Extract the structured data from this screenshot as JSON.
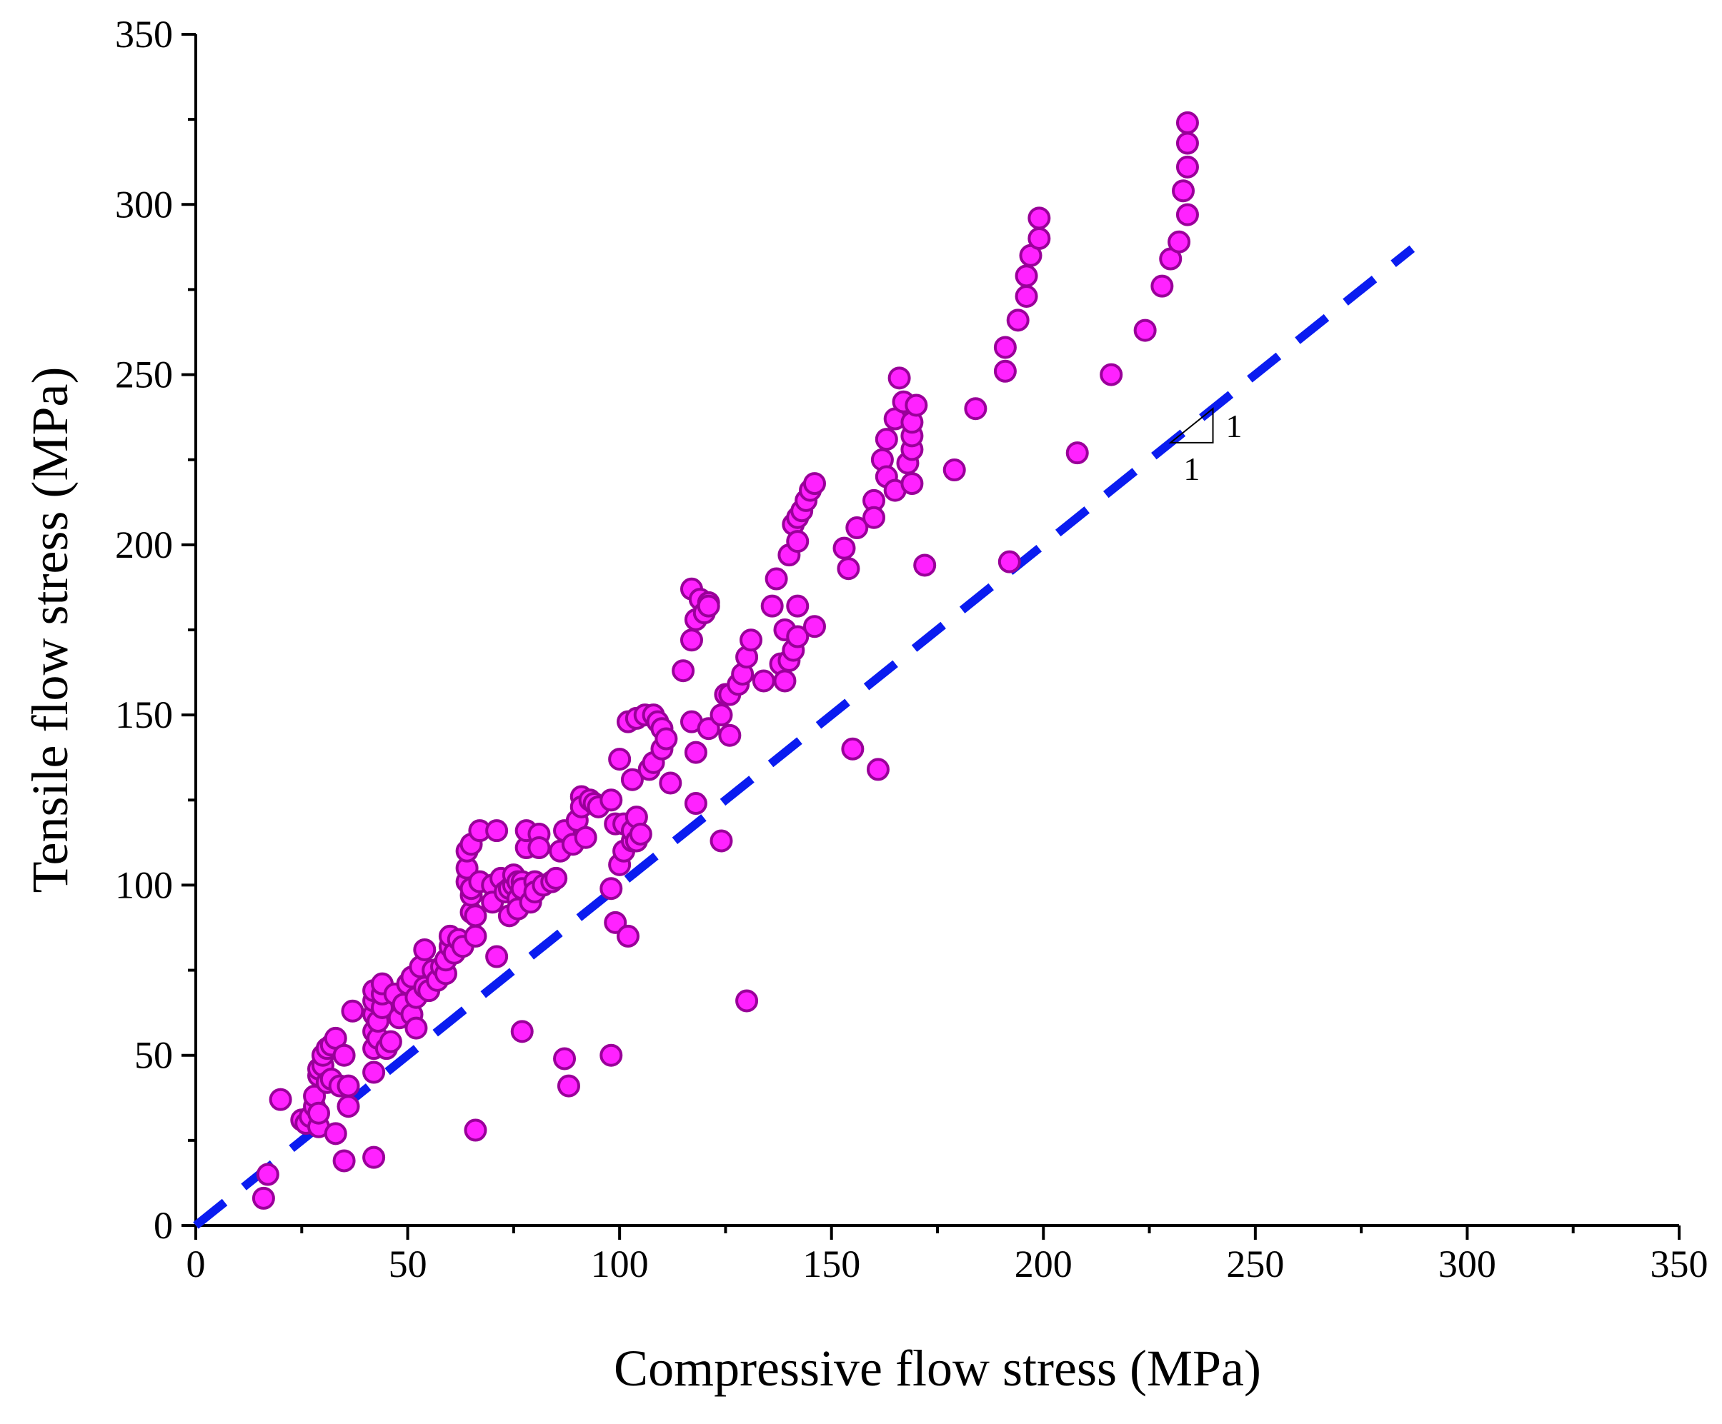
{
  "chart_data": {
    "type": "scatter",
    "title": "",
    "xlabel": "Compressive flow stress (MPa)",
    "ylabel": "Tensile flow stress (MPa)",
    "xlim": [
      0,
      350
    ],
    "ylim": [
      0,
      350
    ],
    "x_ticks": [
      "0",
      "50",
      "100",
      "150",
      "200",
      "250",
      "300",
      "350"
    ],
    "y_ticks": [
      "0",
      "50",
      "100",
      "150",
      "200",
      "250",
      "300",
      "350"
    ],
    "grid": false,
    "legend": "none",
    "colors": {
      "marker_fill": "#ff22ff",
      "marker_edge": "#990099",
      "reference_line": "#0a1cf0"
    },
    "reference_line": {
      "style": "dashed",
      "from": [
        0,
        0
      ],
      "to": [
        287,
        287
      ],
      "slope_labels": [
        "1",
        "1"
      ]
    },
    "series": [
      {
        "points": [
          [
            16,
            8
          ],
          [
            17,
            15
          ],
          [
            20,
            37
          ],
          [
            25,
            31
          ],
          [
            26,
            30
          ],
          [
            27,
            32
          ],
          [
            28,
            35
          ],
          [
            28,
            38
          ],
          [
            29,
            29
          ],
          [
            29,
            33
          ],
          [
            29,
            44
          ],
          [
            29,
            46
          ],
          [
            30,
            47
          ],
          [
            30,
            50
          ],
          [
            31,
            52
          ],
          [
            32,
            53
          ],
          [
            33,
            55
          ],
          [
            31,
            42
          ],
          [
            32,
            43
          ],
          [
            33,
            27
          ],
          [
            34,
            41
          ],
          [
            35,
            50
          ],
          [
            35,
            19
          ],
          [
            36,
            35
          ],
          [
            36,
            41
          ],
          [
            37,
            63
          ],
          [
            42,
            20
          ],
          [
            42,
            45
          ],
          [
            42,
            52
          ],
          [
            42,
            57
          ],
          [
            42,
            62
          ],
          [
            42,
            66
          ],
          [
            42,
            69
          ],
          [
            43,
            55
          ],
          [
            43,
            60
          ],
          [
            44,
            64
          ],
          [
            44,
            68
          ],
          [
            44,
            71
          ],
          [
            45,
            52
          ],
          [
            46,
            54
          ],
          [
            47,
            68
          ],
          [
            48,
            61
          ],
          [
            49,
            65
          ],
          [
            50,
            71
          ],
          [
            51,
            73
          ],
          [
            51,
            62
          ],
          [
            52,
            67
          ],
          [
            52,
            58
          ],
          [
            53,
            76
          ],
          [
            54,
            70
          ],
          [
            54,
            81
          ],
          [
            55,
            69
          ],
          [
            56,
            75
          ],
          [
            57,
            72
          ],
          [
            58,
            76
          ],
          [
            59,
            74
          ],
          [
            59,
            78
          ],
          [
            60,
            82
          ],
          [
            60,
            85
          ],
          [
            61,
            80
          ],
          [
            62,
            84
          ],
          [
            63,
            82
          ],
          [
            64,
            101
          ],
          [
            64,
            105
          ],
          [
            64,
            110
          ],
          [
            65,
            92
          ],
          [
            65,
            97
          ],
          [
            65,
            99
          ],
          [
            65,
            112
          ],
          [
            66,
            91
          ],
          [
            66,
            28
          ],
          [
            66,
            85
          ],
          [
            67,
            101
          ],
          [
            67,
            116
          ],
          [
            70,
            100
          ],
          [
            70,
            95
          ],
          [
            71,
            79
          ],
          [
            71,
            116
          ],
          [
            72,
            102
          ],
          [
            73,
            98
          ],
          [
            74,
            99
          ],
          [
            74,
            91
          ],
          [
            75,
            100
          ],
          [
            75,
            103
          ],
          [
            76,
            96
          ],
          [
            76,
            101
          ],
          [
            76,
            93
          ],
          [
            77,
            101
          ],
          [
            77,
            57
          ],
          [
            77,
            99
          ],
          [
            78,
            111
          ],
          [
            78,
            116
          ],
          [
            79,
            95
          ],
          [
            80,
            101
          ],
          [
            80,
            98
          ],
          [
            81,
            115
          ],
          [
            81,
            111
          ],
          [
            82,
            100
          ],
          [
            84,
            101
          ],
          [
            85,
            102
          ],
          [
            86,
            110
          ],
          [
            87,
            116
          ],
          [
            87,
            49
          ],
          [
            88,
            41
          ],
          [
            89,
            112
          ],
          [
            90,
            119
          ],
          [
            91,
            126
          ],
          [
            91,
            123
          ],
          [
            92,
            114
          ],
          [
            93,
            125
          ],
          [
            94,
            124
          ],
          [
            95,
            123
          ],
          [
            98,
            99
          ],
          [
            98,
            50
          ],
          [
            98,
            125
          ],
          [
            99,
            118
          ],
          [
            99,
            89
          ],
          [
            100,
            137
          ],
          [
            100,
            106
          ],
          [
            101,
            110
          ],
          [
            101,
            118
          ],
          [
            102,
            85
          ],
          [
            102,
            148
          ],
          [
            103,
            113
          ],
          [
            103,
            116
          ],
          [
            103,
            131
          ],
          [
            104,
            120
          ],
          [
            104,
            113
          ],
          [
            104,
            149
          ],
          [
            105,
            115
          ],
          [
            106,
            150
          ],
          [
            107,
            134
          ],
          [
            108,
            150
          ],
          [
            108,
            136
          ],
          [
            109,
            148
          ],
          [
            110,
            140
          ],
          [
            110,
            146
          ],
          [
            111,
            143
          ],
          [
            112,
            130
          ],
          [
            115,
            163
          ],
          [
            117,
            187
          ],
          [
            117,
            172
          ],
          [
            117,
            148
          ],
          [
            118,
            178
          ],
          [
            118,
            139
          ],
          [
            118,
            124
          ],
          [
            119,
            184
          ],
          [
            120,
            180
          ],
          [
            121,
            183
          ],
          [
            121,
            182
          ],
          [
            121,
            146
          ],
          [
            124,
            113
          ],
          [
            124,
            150
          ],
          [
            125,
            156
          ],
          [
            126,
            144
          ],
          [
            126,
            156
          ],
          [
            128,
            159
          ],
          [
            129,
            162
          ],
          [
            130,
            66
          ],
          [
            130,
            167
          ],
          [
            131,
            172
          ],
          [
            134,
            160
          ],
          [
            136,
            182
          ],
          [
            137,
            190
          ],
          [
            138,
            165
          ],
          [
            139,
            160
          ],
          [
            139,
            175
          ],
          [
            140,
            166
          ],
          [
            140,
            197
          ],
          [
            141,
            206
          ],
          [
            141,
            169
          ],
          [
            142,
            173
          ],
          [
            142,
            182
          ],
          [
            142,
            201
          ],
          [
            142,
            208
          ],
          [
            143,
            210
          ],
          [
            144,
            213
          ],
          [
            145,
            216
          ],
          [
            146,
            218
          ],
          [
            146,
            176
          ],
          [
            153,
            199
          ],
          [
            154,
            193
          ],
          [
            155,
            140
          ],
          [
            156,
            205
          ],
          [
            160,
            213
          ],
          [
            160,
            208
          ],
          [
            161,
            134
          ],
          [
            162,
            225
          ],
          [
            163,
            220
          ],
          [
            163,
            231
          ],
          [
            165,
            216
          ],
          [
            165,
            237
          ],
          [
            166,
            249
          ],
          [
            167,
            242
          ],
          [
            168,
            224
          ],
          [
            169,
            218
          ],
          [
            169,
            228
          ],
          [
            169,
            232
          ],
          [
            169,
            236
          ],
          [
            170,
            241
          ],
          [
            172,
            194
          ],
          [
            179,
            222
          ],
          [
            184,
            240
          ],
          [
            191,
            251
          ],
          [
            191,
            258
          ],
          [
            192,
            195
          ],
          [
            194,
            266
          ],
          [
            196,
            273
          ],
          [
            196,
            279
          ],
          [
            197,
            285
          ],
          [
            199,
            290
          ],
          [
            199,
            296
          ],
          [
            208,
            227
          ],
          [
            216,
            250
          ],
          [
            224,
            263
          ],
          [
            228,
            276
          ],
          [
            230,
            284
          ],
          [
            232,
            289
          ],
          [
            233,
            304
          ],
          [
            234,
            297
          ],
          [
            234,
            311
          ],
          [
            234,
            318
          ],
          [
            234,
            324
          ]
        ]
      }
    ]
  }
}
